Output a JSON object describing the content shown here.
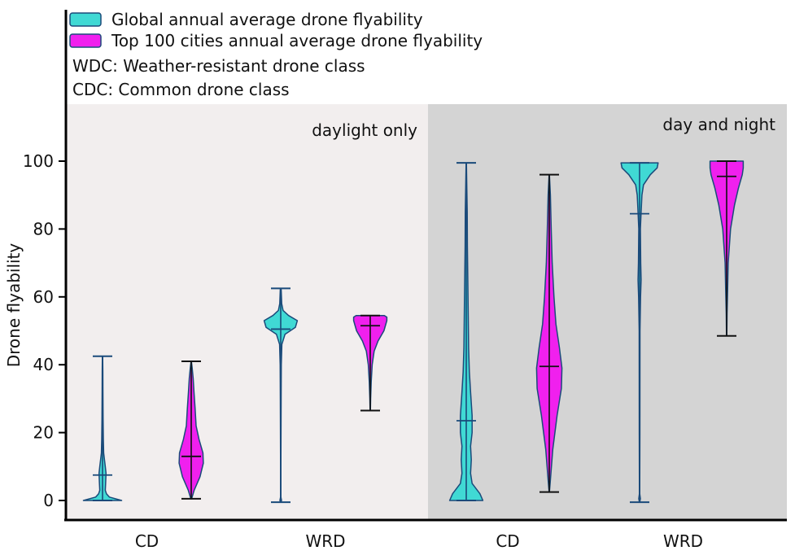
{
  "chart_data": {
    "type": "violin",
    "ylabel": "Drone flyability",
    "ylim": [
      0,
      105
    ],
    "yticks": [
      "0",
      "20",
      "40",
      "60",
      "80",
      "100"
    ],
    "groups": [
      "CD",
      "WRD",
      "CD",
      "WRD"
    ],
    "panels": [
      {
        "label": "daylight only",
        "color": "#f2eeee"
      },
      {
        "label": "day and night",
        "color": "#d4d4d4"
      }
    ],
    "legend": {
      "placement": "top-left",
      "entries": [
        {
          "label": "Global annual average drone flyability",
          "color": "#40d9d4"
        },
        {
          "label": "Top 100 cities annual average drone flyability",
          "color": "#f020ee"
        }
      ],
      "notes": [
        "WDC: Weather-resistant drone class",
        "CDC: Common drone class"
      ]
    },
    "series": [
      {
        "panel": 0,
        "group": "CD",
        "color": "#40d9d4",
        "min": 0,
        "max": 42.5,
        "mean": 7.5,
        "density": [
          [
            0,
            0.98
          ],
          [
            1,
            0.35
          ],
          [
            2,
            0.2
          ],
          [
            3,
            0.14
          ],
          [
            5,
            0.16
          ],
          [
            8,
            0.18
          ],
          [
            10,
            0.14
          ],
          [
            12,
            0.1
          ],
          [
            14,
            0.06
          ],
          [
            18,
            0.04
          ],
          [
            24,
            0.03
          ],
          [
            32,
            0.02
          ],
          [
            38,
            0.015
          ],
          [
            42.5,
            0.01
          ]
        ]
      },
      {
        "panel": 0,
        "group": "CD",
        "color": "#f020ee",
        "min": 0.5,
        "max": 41,
        "mean": 13,
        "density": [
          [
            0.5,
            0.02
          ],
          [
            3,
            0.15
          ],
          [
            7,
            0.45
          ],
          [
            11,
            0.62
          ],
          [
            14,
            0.6
          ],
          [
            18,
            0.4
          ],
          [
            22,
            0.25
          ],
          [
            27,
            0.2
          ],
          [
            32,
            0.14
          ],
          [
            36,
            0.1
          ],
          [
            39,
            0.05
          ],
          [
            41,
            0.01
          ]
        ]
      },
      {
        "panel": 0,
        "group": "WRD",
        "color": "#40d9d4",
        "min": -0.5,
        "max": 62.5,
        "mean": 50.5,
        "density": [
          [
            -0.5,
            0.01
          ],
          [
            0,
            0.04
          ],
          [
            1,
            0.01
          ],
          [
            10,
            0.01
          ],
          [
            30,
            0.02
          ],
          [
            40,
            0.03
          ],
          [
            46,
            0.06
          ],
          [
            49,
            0.22
          ],
          [
            51,
            0.75
          ],
          [
            53,
            0.85
          ],
          [
            54.5,
            0.4
          ],
          [
            56,
            0.12
          ],
          [
            58,
            0.05
          ],
          [
            62.5,
            0.02
          ]
        ]
      },
      {
        "panel": 0,
        "group": "WRD",
        "color": "#f020ee",
        "min": 26.5,
        "max": 54.5,
        "mean": 51.5,
        "density": [
          [
            26.5,
            0.01
          ],
          [
            30,
            0.02
          ],
          [
            35,
            0.05
          ],
          [
            40,
            0.1
          ],
          [
            44,
            0.2
          ],
          [
            47,
            0.4
          ],
          [
            50,
            0.7
          ],
          [
            53,
            0.85
          ],
          [
            54,
            0.85
          ],
          [
            54.5,
            0.72
          ]
        ]
      },
      {
        "panel": 1,
        "group": "CD",
        "color": "#40d9d4",
        "min": 0,
        "max": 99.5,
        "mean": 23.5,
        "density": [
          [
            0,
            0.85
          ],
          [
            2,
            0.7
          ],
          [
            5,
            0.3
          ],
          [
            8,
            0.22
          ],
          [
            12,
            0.26
          ],
          [
            16,
            0.22
          ],
          [
            20,
            0.3
          ],
          [
            25,
            0.3
          ],
          [
            32,
            0.22
          ],
          [
            38,
            0.16
          ],
          [
            45,
            0.12
          ],
          [
            55,
            0.1
          ],
          [
            65,
            0.08
          ],
          [
            75,
            0.06
          ],
          [
            85,
            0.05
          ],
          [
            92,
            0.03
          ],
          [
            99.5,
            0.01
          ]
        ]
      },
      {
        "panel": 1,
        "group": "CD",
        "color": "#f020ee",
        "min": 2.5,
        "max": 96,
        "mean": 39.5,
        "density": [
          [
            2.5,
            0.01
          ],
          [
            6,
            0.06
          ],
          [
            15,
            0.18
          ],
          [
            25,
            0.4
          ],
          [
            33,
            0.62
          ],
          [
            39,
            0.65
          ],
          [
            45,
            0.52
          ],
          [
            52,
            0.34
          ],
          [
            60,
            0.24
          ],
          [
            70,
            0.15
          ],
          [
            80,
            0.1
          ],
          [
            90,
            0.06
          ],
          [
            96,
            0.01
          ]
        ]
      },
      {
        "panel": 1,
        "group": "WRD",
        "color": "#40d9d4",
        "min": -0.5,
        "max": 99.5,
        "mean": 84.5,
        "density": [
          [
            -0.5,
            0.01
          ],
          [
            0.5,
            0.04
          ],
          [
            2,
            0.01
          ],
          [
            20,
            0.015
          ],
          [
            50,
            0.02
          ],
          [
            60,
            0.05
          ],
          [
            65,
            0.08
          ],
          [
            70,
            0.06
          ],
          [
            80,
            0.04
          ],
          [
            85,
            0.08
          ],
          [
            90,
            0.12
          ],
          [
            93,
            0.2
          ],
          [
            96,
            0.55
          ],
          [
            98,
            0.9
          ],
          [
            99.5,
            0.95
          ]
        ]
      },
      {
        "panel": 1,
        "group": "WRD",
        "color": "#f020ee",
        "min": 48.5,
        "max": 100,
        "mean": 95.5,
        "density": [
          [
            48.5,
            0.01
          ],
          [
            55,
            0.02
          ],
          [
            62,
            0.05
          ],
          [
            70,
            0.08
          ],
          [
            80,
            0.2
          ],
          [
            87,
            0.4
          ],
          [
            92,
            0.6
          ],
          [
            96,
            0.8
          ],
          [
            98,
            0.85
          ],
          [
            100,
            0.85
          ]
        ]
      }
    ]
  }
}
